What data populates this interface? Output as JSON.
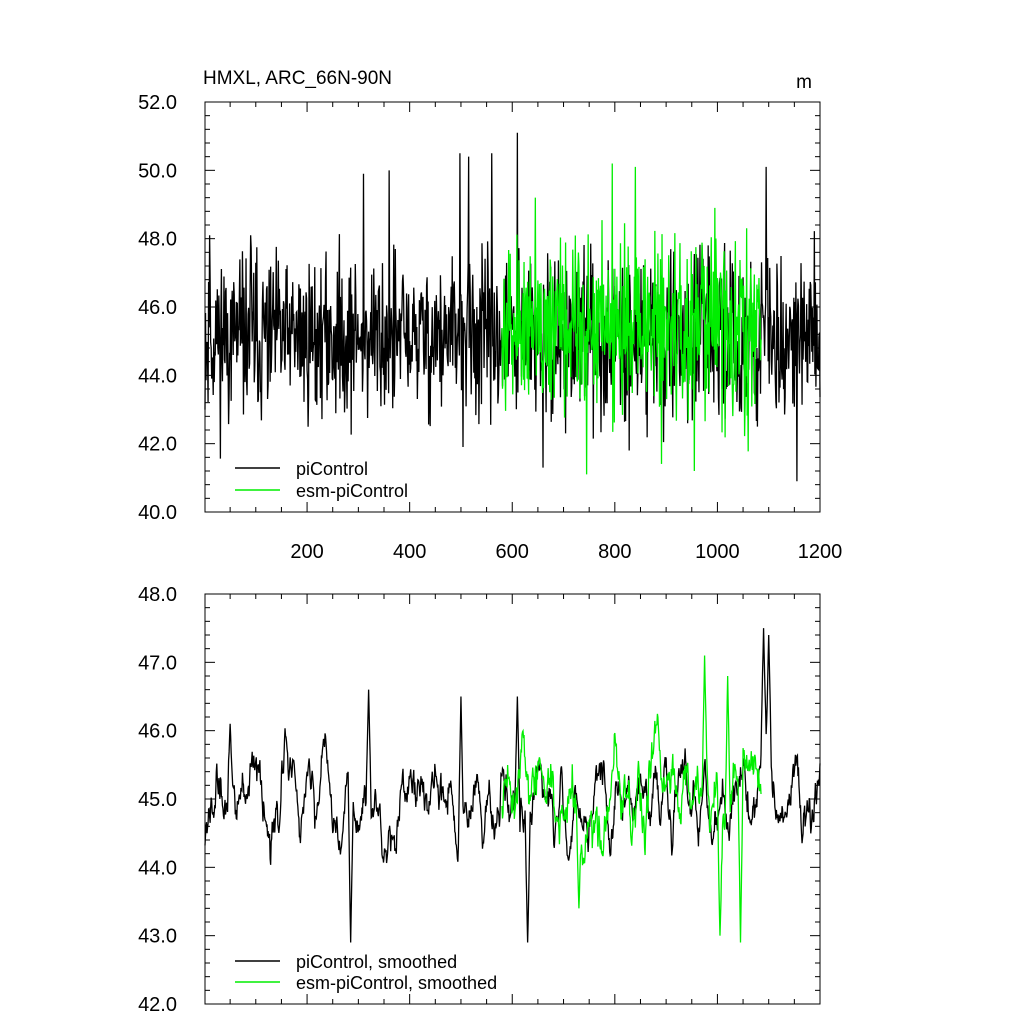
{
  "chart_data": [
    {
      "type": "line",
      "title": "HMXL, ARC_66N-90N",
      "units": "m",
      "xlim": [
        1,
        1200
      ],
      "ylim": [
        40,
        52
      ],
      "y_ticks": [
        "40.0",
        "42.0",
        "44.0",
        "46.0",
        "48.0",
        "50.0",
        "52.0"
      ],
      "x_ticks": [
        "200",
        "400",
        "600",
        "800",
        "1000",
        "1200"
      ],
      "x_tick_values": [
        200,
        400,
        600,
        800,
        1000,
        1200
      ],
      "grid": false,
      "legend_position": "bottom-left",
      "series": [
        {
          "name": "piControl",
          "color": "#000000",
          "x_range": [
            1,
            1200
          ],
          "mean": 45.1,
          "spread": 1.3,
          "peaks": [
            [
              10,
              48.1
            ],
            [
              90,
              48.1
            ],
            [
              310,
              49.9
            ],
            [
              360,
              50.0
            ],
            [
              498,
              50.5
            ],
            [
              515,
              50.4
            ],
            [
              560,
              50.5
            ],
            [
              610,
              51.1
            ],
            [
              1095,
              50.1
            ],
            [
              1155,
              40.9
            ],
            [
              660,
              41.3
            ]
          ]
        },
        {
          "name": "esm-piControl",
          "color": "#00ee00",
          "x_range": [
            580,
            1085
          ],
          "mean": 45.3,
          "spread": 1.5,
          "peaks": [
            [
              645,
              49.2
            ],
            [
              795,
              50.2
            ],
            [
              840,
              50.1
            ],
            [
              995,
              48.9
            ],
            [
              745,
              41.1
            ],
            [
              955,
              41.2
            ]
          ]
        }
      ]
    },
    {
      "type": "line",
      "xlim": [
        1,
        1200
      ],
      "ylim": [
        42,
        48
      ],
      "y_ticks": [
        "42.0",
        "43.0",
        "44.0",
        "45.0",
        "46.0",
        "47.0",
        "48.0"
      ],
      "x_tick_values": [
        200,
        400,
        600,
        800,
        1000,
        1200
      ],
      "grid": false,
      "legend_position": "bottom-left",
      "series": [
        {
          "name": "piControl, smoothed",
          "color": "#000000",
          "x_range": [
            1,
            1200
          ],
          "mean": 45.0,
          "spread": 0.55,
          "peaks": [
            [
              50,
              46.1
            ],
            [
              320,
              46.6
            ],
            [
              285,
              42.9
            ],
            [
              500,
              46.5
            ],
            [
              610,
              46.5
            ],
            [
              630,
              42.9
            ],
            [
              1090,
              47.5
            ],
            [
              1100,
              47.4
            ]
          ]
        },
        {
          "name": "esm-piControl, smoothed",
          "color": "#00ee00",
          "x_range": [
            580,
            1085
          ],
          "mean": 45.0,
          "spread": 0.65,
          "peaks": [
            [
              975,
              47.1
            ],
            [
              1020,
              46.8
            ],
            [
              1045,
              42.9
            ],
            [
              1005,
              43.0
            ],
            [
              730,
              43.4
            ]
          ]
        }
      ]
    }
  ]
}
